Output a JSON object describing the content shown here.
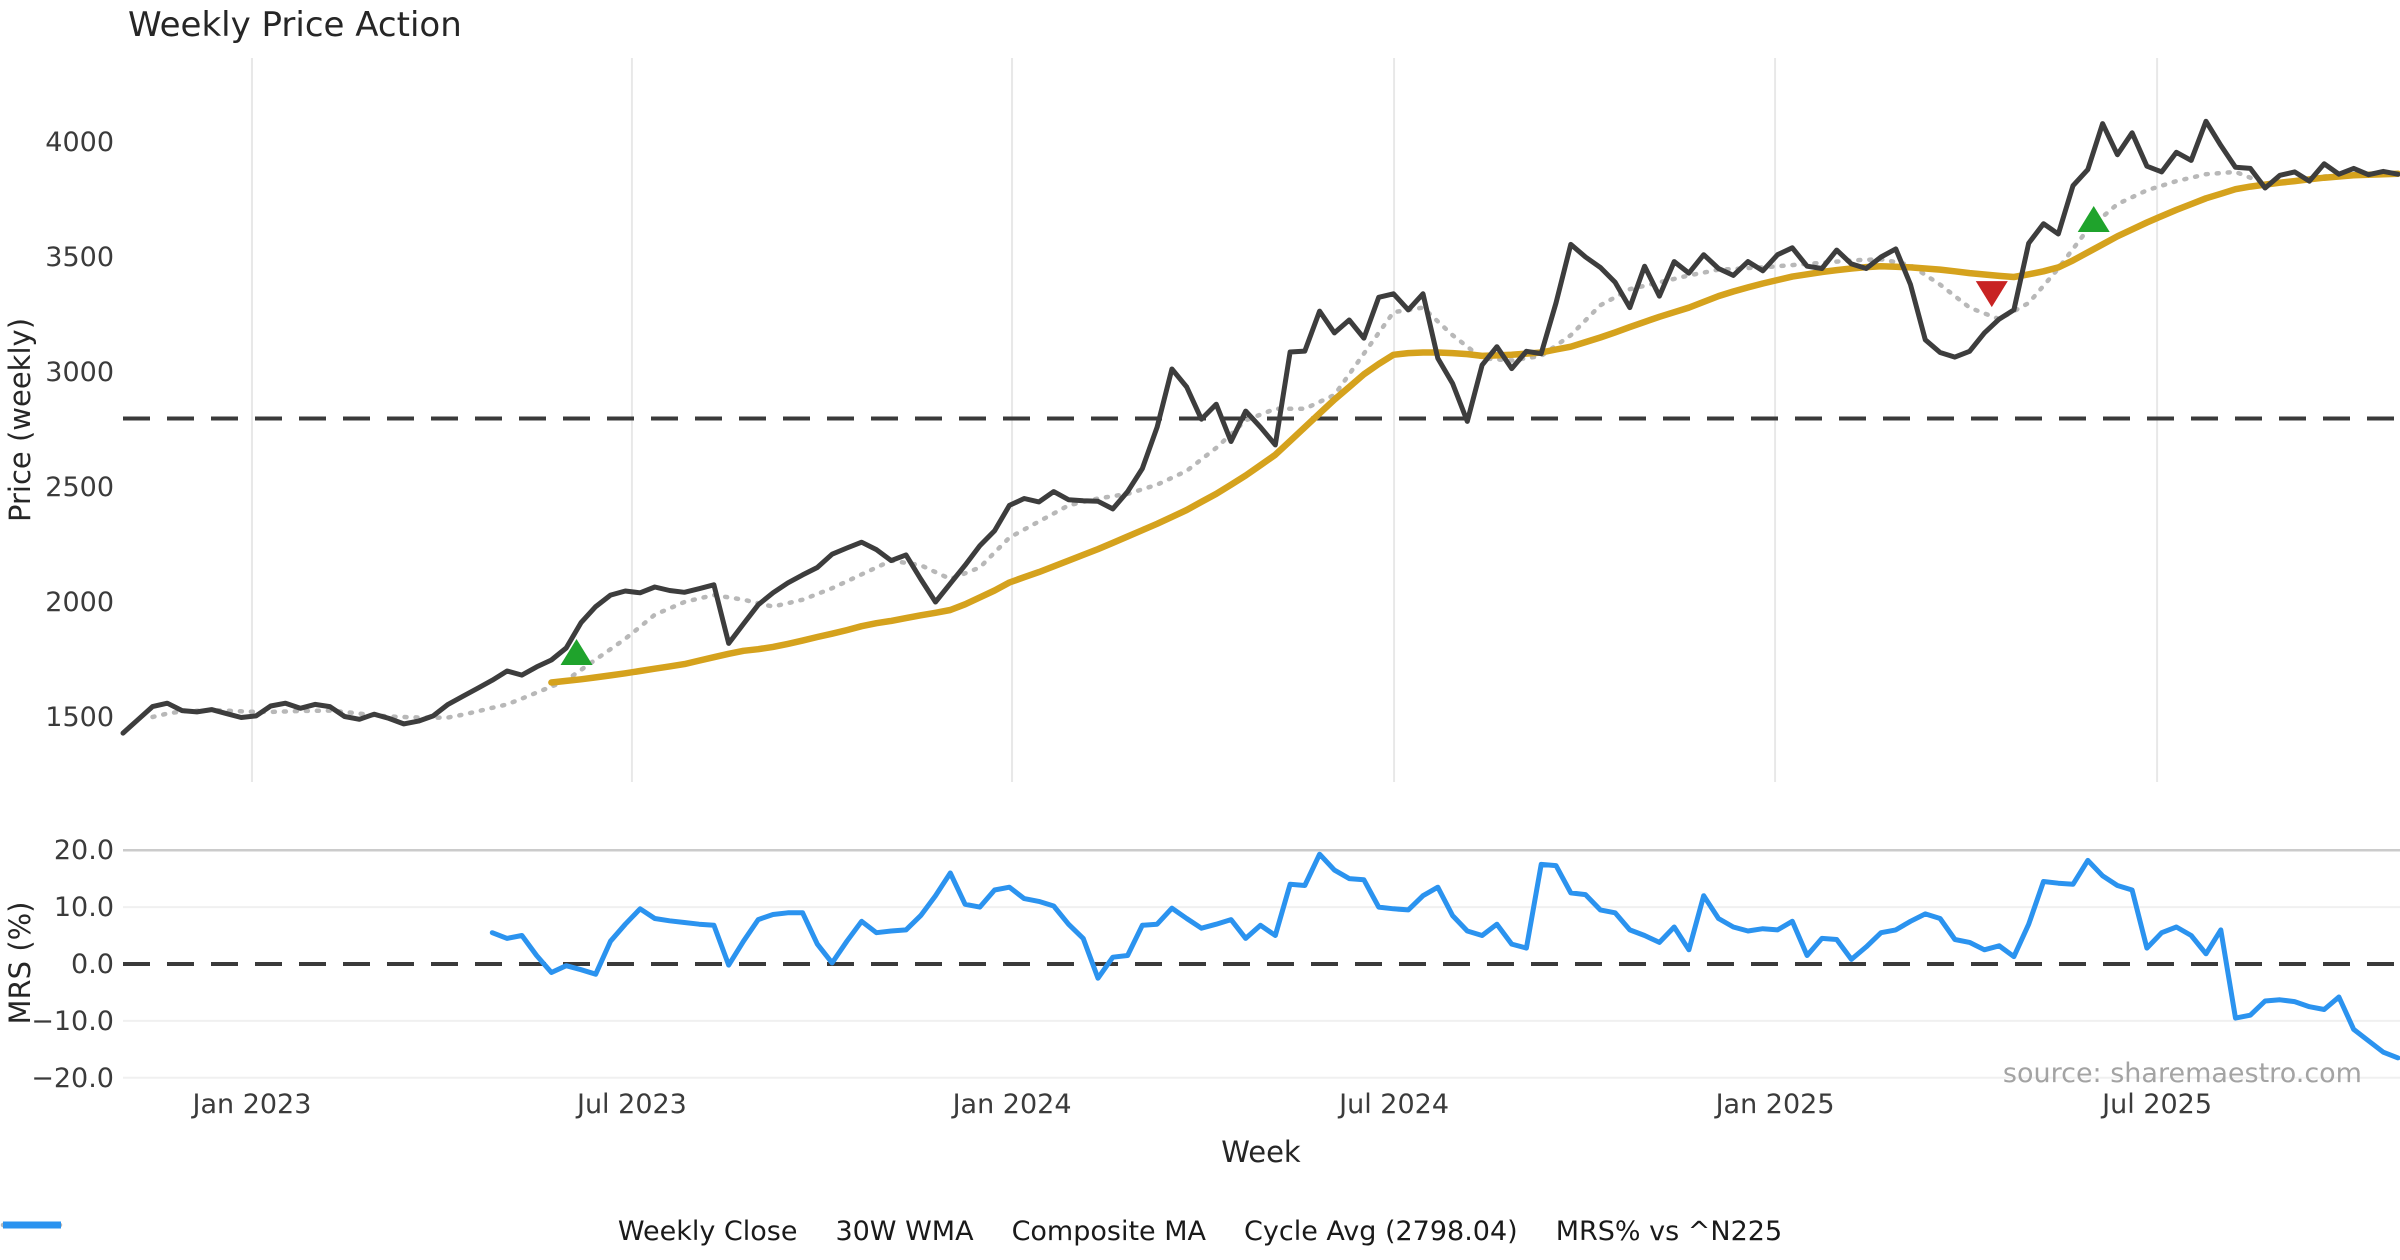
{
  "title": "Weekly Price Action",
  "price_ylabel": "Price (weekly)",
  "mrs_ylabel": "MRS (%)",
  "xlabel": "Week",
  "source_text": "source: sharemaestro.com",
  "colors": {
    "weekly_close": "#3d3d3d",
    "wma_30w": "#d5a21d",
    "composite_ma": "#b8b8b8",
    "cycle_avg": "#3a3a3a",
    "mrs_line": "#2b93ef",
    "buy_marker": "#1fa32c",
    "sell_marker": "#c82323"
  },
  "legend": [
    {
      "label": "Weekly Close",
      "color": "#3d3d3d",
      "style": "solid",
      "width": 7
    },
    {
      "label": "30W WMA",
      "color": "#d5a21d",
      "style": "solid",
      "width": 7
    },
    {
      "label": "Composite MA",
      "color": "#b8b8b8",
      "style": "dotted",
      "width": 4.5
    },
    {
      "label": "Cycle Avg (2798.04)",
      "color": "#3a3a3a",
      "style": "dashed",
      "width": 4
    },
    {
      "label": "MRS% vs ^N225",
      "color": "#2b93ef",
      "style": "solid",
      "width": 7
    }
  ],
  "chart_data": {
    "type": "line",
    "x_unit": "week_index",
    "n_weeks": 155,
    "x_ticks": [
      {
        "label": "Jan 2023",
        "week": 8.73
      },
      {
        "label": "Jul 2023",
        "week": 34.45
      },
      {
        "label": "Jan 2024",
        "week": 60.18
      },
      {
        "label": "Jul 2024",
        "week": 86.04
      },
      {
        "label": "Jan 2025",
        "week": 111.83
      },
      {
        "label": "Jul 2025",
        "week": 137.69
      }
    ],
    "xlabel": "Week",
    "price_panel": {
      "ylabel": "Price (weekly)",
      "ylim": [
        1220,
        4360
      ],
      "yticks": [
        {
          "v": 4000,
          "label": "4000"
        },
        {
          "v": 3500,
          "label": "3500"
        },
        {
          "v": 3000,
          "label": "3000"
        },
        {
          "v": 2500,
          "label": "2500"
        },
        {
          "v": 2000,
          "label": "2000"
        },
        {
          "v": 1500,
          "label": "1500"
        }
      ],
      "hline": {
        "name": "Cycle Avg",
        "value": 2798.04,
        "style": "dashed"
      },
      "markers": [
        {
          "signal": "buy",
          "week": 30.7,
          "price": 1778,
          "shape": "triangle-up",
          "color": "#1fa32c"
        },
        {
          "signal": "sell",
          "week": 126.5,
          "price": 3343,
          "shape": "triangle-down",
          "color": "#c82323"
        },
        {
          "signal": "buy",
          "week": 133.4,
          "price": 3661,
          "shape": "triangle-up",
          "color": "#1fa32c"
        }
      ],
      "series": [
        {
          "name": "Composite MA",
          "color": "#b8b8b8",
          "style": "dotted",
          "width": 4.5,
          "values": [
            null,
            null,
            1500,
            1515,
            1525,
            1527,
            1530,
            1528,
            1525,
            1522,
            1522,
            1524,
            1526,
            1527,
            1528,
            1522,
            1515,
            1508,
            1502,
            1500,
            1498,
            1497,
            1498,
            1510,
            1525,
            1540,
            1555,
            1580,
            1606,
            1632,
            1660,
            1705,
            1750,
            1795,
            1840,
            1892,
            1945,
            1972,
            2000,
            2015,
            2030,
            2020,
            2010,
            1995,
            1980,
            1995,
            2010,
            2035,
            2060,
            2090,
            2120,
            2150,
            2180,
            2170,
            2160,
            2130,
            2100,
            2125,
            2150,
            2215,
            2280,
            2315,
            2350,
            2385,
            2420,
            2435,
            2450,
            2460,
            2470,
            2490,
            2510,
            2540,
            2570,
            2620,
            2670,
            2730,
            2790,
            2815,
            2840,
            2840,
            2840,
            2870,
            2900,
            2990,
            3080,
            3170,
            3260,
            3270,
            3280,
            3220,
            3160,
            3110,
            3060,
            3055,
            3050,
            3060,
            3070,
            3115,
            3160,
            3225,
            3290,
            3325,
            3360,
            3375,
            3390,
            3405,
            3420,
            3432,
            3445,
            3448,
            3452,
            3455,
            3460,
            3465,
            3470,
            3475,
            3480,
            3485,
            3488,
            3490,
            3478,
            3465,
            3422,
            3380,
            3330,
            3280,
            3255,
            3230,
            3265,
            3300,
            3375,
            3450,
            3535,
            3620,
            3675,
            3730,
            3760,
            3790,
            3810,
            3830,
            3845,
            3860,
            3865,
            3870,
            3845,
            3820,
            3825,
            3830,
            3840,
            3850,
            3852,
            3855,
            3858,
            3859,
            3860
          ]
        },
        {
          "name": "30W WMA",
          "color": "#d5a21d",
          "style": "solid",
          "width": 6.5,
          "values": [
            null,
            null,
            null,
            null,
            null,
            null,
            null,
            null,
            null,
            null,
            null,
            null,
            null,
            null,
            null,
            null,
            null,
            null,
            null,
            null,
            null,
            null,
            null,
            null,
            null,
            null,
            null,
            null,
            null,
            1650,
            1657,
            1664,
            1672,
            1681,
            1690,
            1700,
            1710,
            1720,
            1730,
            1745,
            1760,
            1775,
            1788,
            1795,
            1805,
            1818,
            1832,
            1848,
            1862,
            1878,
            1895,
            1908,
            1918,
            1930,
            1942,
            1953,
            1965,
            1990,
            2020,
            2050,
            2085,
            2108,
            2130,
            2155,
            2180,
            2205,
            2230,
            2257,
            2285,
            2312,
            2340,
            2370,
            2400,
            2435,
            2470,
            2510,
            2550,
            2595,
            2640,
            2700,
            2760,
            2820,
            2880,
            2935,
            2990,
            3035,
            3075,
            3082,
            3085,
            3085,
            3082,
            3078,
            3070,
            3072,
            3075,
            3080,
            3085,
            3098,
            3110,
            3130,
            3150,
            3172,
            3195,
            3218,
            3240,
            3260,
            3280,
            3305,
            3330,
            3350,
            3368,
            3385,
            3400,
            3415,
            3425,
            3435,
            3443,
            3450,
            3456,
            3460,
            3458,
            3455,
            3450,
            3445,
            3438,
            3430,
            3424,
            3418,
            3413,
            3425,
            3438,
            3455,
            3485,
            3520,
            3555,
            3590,
            3620,
            3650,
            3678,
            3705,
            3730,
            3755,
            3775,
            3795,
            3806,
            3815,
            3823,
            3830,
            3838,
            3845,
            3850,
            3855,
            3858,
            3860,
            3862
          ]
        },
        {
          "name": "Weekly Close",
          "color": "#3d3d3d",
          "style": "solid",
          "width": 5,
          "values": [
            1430,
            1488,
            1545,
            1560,
            1528,
            1522,
            1532,
            1515,
            1498,
            1505,
            1548,
            1560,
            1538,
            1555,
            1545,
            1502,
            1490,
            1512,
            1494,
            1470,
            1482,
            1505,
            1555,
            1590,
            1625,
            1660,
            1700,
            1682,
            1718,
            1748,
            1800,
            1910,
            1980,
            2030,
            2048,
            2040,
            2065,
            2050,
            2042,
            2058,
            2075,
            1820,
            1905,
            1988,
            2040,
            2083,
            2118,
            2150,
            2208,
            2235,
            2260,
            2228,
            2180,
            2205,
            2100,
            2000,
            2080,
            2160,
            2245,
            2310,
            2420,
            2450,
            2435,
            2480,
            2445,
            2440,
            2438,
            2405,
            2480,
            2580,
            2760,
            3013,
            2935,
            2795,
            2860,
            2698,
            2830,
            2760,
            2683,
            3087,
            3091,
            3265,
            3170,
            3226,
            3147,
            3325,
            3340,
            3270,
            3340,
            3060,
            2950,
            2785,
            3030,
            3110,
            3015,
            3090,
            3080,
            3300,
            3555,
            3500,
            3455,
            3390,
            3280,
            3460,
            3330,
            3480,
            3430,
            3510,
            3450,
            3420,
            3480,
            3440,
            3510,
            3540,
            3460,
            3450,
            3530,
            3470,
            3450,
            3500,
            3535,
            3380,
            3140,
            3085,
            3065,
            3090,
            3170,
            3230,
            3270,
            3560,
            3645,
            3600,
            3810,
            3880,
            4080,
            3945,
            4040,
            3895,
            3870,
            3955,
            3920,
            4090,
            3985,
            3890,
            3885,
            3800,
            3855,
            3870,
            3830,
            3905,
            3860,
            3885,
            3858,
            3872,
            3860
          ]
        }
      ]
    },
    "mrs_panel": {
      "ylabel": "MRS (%)",
      "ylim": [
        -22,
        21.5
      ],
      "yticks": [
        {
          "v": 20,
          "label": "20.0"
        },
        {
          "v": 10,
          "label": "10.0"
        },
        {
          "v": 0,
          "label": "0.0"
        },
        {
          "v": -10,
          "label": "−10.0"
        },
        {
          "v": -20,
          "label": "−20.0"
        }
      ],
      "gridlines": [
        20,
        10,
        -10,
        -20
      ],
      "hline": {
        "name": "zero",
        "value": 0,
        "style": "dashed"
      },
      "series": [
        {
          "name": "MRS% vs ^N225",
          "color": "#2b93ef",
          "style": "solid",
          "width": 5,
          "values": [
            null,
            null,
            null,
            null,
            null,
            null,
            null,
            null,
            null,
            null,
            null,
            null,
            null,
            null,
            null,
            null,
            null,
            null,
            null,
            null,
            null,
            null,
            null,
            null,
            null,
            5.5,
            4.5,
            5.0,
            1.5,
            -1.5,
            -0.3,
            -1.0,
            -1.8,
            4.0,
            7.0,
            9.7,
            8.0,
            7.6,
            7.3,
            7.0,
            6.8,
            -0.2,
            4.0,
            7.8,
            8.7,
            9.0,
            9.0,
            3.5,
            0.2,
            4.0,
            7.5,
            5.5,
            5.8,
            6.0,
            8.5,
            12.0,
            16.0,
            10.5,
            10.0,
            13.0,
            13.5,
            11.5,
            11.0,
            10.2,
            7.0,
            4.5,
            -2.5,
            1.2,
            1.5,
            6.8,
            7.0,
            9.8,
            8.0,
            6.3,
            7.0,
            7.8,
            4.5,
            6.8,
            5.0,
            14.0,
            13.8,
            19.3,
            16.5,
            15.0,
            14.8,
            10.0,
            9.7,
            9.5,
            12.0,
            13.5,
            8.5,
            5.8,
            5.0,
            7.0,
            3.5,
            2.8,
            17.5,
            17.3,
            12.5,
            12.2,
            9.5,
            9.0,
            6.0,
            5.0,
            3.8,
            6.5,
            2.5,
            12.0,
            8.0,
            6.5,
            5.8,
            6.2,
            6.0,
            7.5,
            1.5,
            4.5,
            4.3,
            0.8,
            3.0,
            5.5,
            6.0,
            7.5,
            8.8,
            8.0,
            4.3,
            3.8,
            2.5,
            3.2,
            1.3,
            7.0,
            14.5,
            14.2,
            14.0,
            18.2,
            15.5,
            13.8,
            13.0,
            2.8,
            5.5,
            6.5,
            5.0,
            1.8,
            6.0,
            -9.5,
            -9.0,
            -6.5,
            -6.3,
            -6.6,
            -7.5,
            -8.0,
            -5.8,
            -11.5,
            -13.5,
            -15.5,
            -16.5
          ]
        }
      ]
    }
  }
}
